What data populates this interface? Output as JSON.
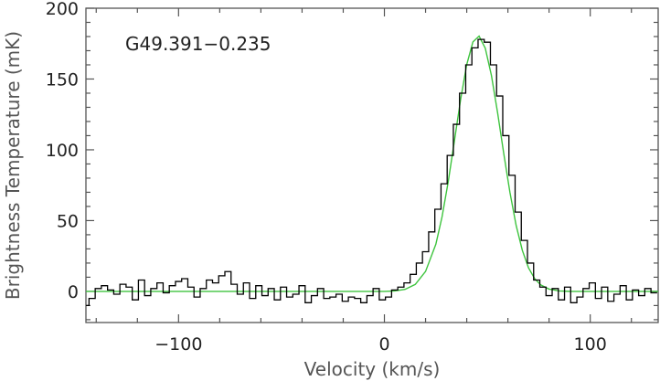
{
  "chart_data": {
    "type": "line",
    "title": "",
    "xlabel": "Velocity (km/s)",
    "ylabel": "Brightness Temperature (mK)",
    "annotation": "G49.391−0.235",
    "xlim": [
      -145,
      133
    ],
    "ylim": [
      -22,
      200
    ],
    "xticks": [
      -100,
      0,
      100
    ],
    "xtick_labels": [
      "−100",
      "0",
      "100"
    ],
    "yticks": [
      0,
      50,
      100,
      150,
      200
    ],
    "ytick_labels": [
      "0",
      "50",
      "100",
      "150",
      "200"
    ],
    "grid": false,
    "series": [
      {
        "style": "step",
        "color": "#000000",
        "x": [
          -145,
          -142,
          -139,
          -136,
          -133,
          -130,
          -127,
          -124,
          -121,
          -118,
          -115,
          -112,
          -109,
          -106,
          -103,
          -100,
          -97,
          -94,
          -91,
          -88,
          -85,
          -82,
          -79,
          -76,
          -73,
          -70,
          -67,
          -64,
          -61,
          -58,
          -55,
          -52,
          -49,
          -46,
          -43,
          -40,
          -37,
          -34,
          -31,
          -28,
          -25,
          -22,
          -19,
          -16,
          -13,
          -10,
          -7,
          -4,
          -1,
          2,
          5,
          8,
          11,
          14,
          17,
          20,
          23,
          26,
          29,
          32,
          35,
          38,
          41,
          44,
          47,
          50,
          53,
          56,
          59,
          62,
          65,
          68,
          71,
          74,
          77,
          80,
          83,
          86,
          89,
          92,
          95,
          98,
          101,
          104,
          107,
          110,
          113,
          116,
          119,
          122,
          125,
          128,
          131
        ],
        "values": [
          -10,
          -5,
          2,
          4,
          1,
          -2,
          5,
          3,
          -6,
          8,
          -3,
          2,
          6,
          -1,
          4,
          7,
          9,
          3,
          -4,
          2,
          8,
          6,
          11,
          14,
          5,
          -2,
          6,
          -5,
          4,
          -3,
          2,
          -6,
          3,
          -4,
          -2,
          4,
          -8,
          -3,
          2,
          -5,
          -4,
          -2,
          -7,
          -4,
          -5,
          -8,
          -3,
          2,
          -6,
          -4,
          1,
          3,
          6,
          12,
          20,
          28,
          42,
          58,
          76,
          96,
          118,
          140,
          160,
          172,
          178,
          176,
          160,
          138,
          110,
          82,
          56,
          36,
          20,
          8,
          3,
          -3,
          2,
          -6,
          3,
          -8,
          -4,
          2,
          6,
          -5,
          3,
          -7,
          -2,
          4,
          -6,
          1,
          -3,
          2,
          -1
        ]
      },
      {
        "style": "line",
        "color": "#3ec43e",
        "x": [
          -145,
          -120,
          -100,
          -80,
          -60,
          -40,
          -20,
          0,
          5,
          10,
          15,
          20,
          25,
          28,
          31,
          34,
          37,
          40,
          43,
          46,
          49,
          52,
          55,
          58,
          61,
          64,
          67,
          70,
          73,
          76,
          80,
          85,
          90,
          100,
          110,
          120,
          133
        ],
        "values": [
          0,
          0,
          0,
          0,
          0,
          0,
          0,
          0,
          0.3,
          1.4,
          4.9,
          14.1,
          33.3,
          52.6,
          77.4,
          106.2,
          135.3,
          160.2,
          176.2,
          180.3,
          171.8,
          152.5,
          126.1,
          97.2,
          69.8,
          46.6,
          29.0,
          16.7,
          9.0,
          4.5,
          1.6,
          0.3,
          0.03,
          0,
          0,
          0,
          0
        ]
      }
    ]
  }
}
